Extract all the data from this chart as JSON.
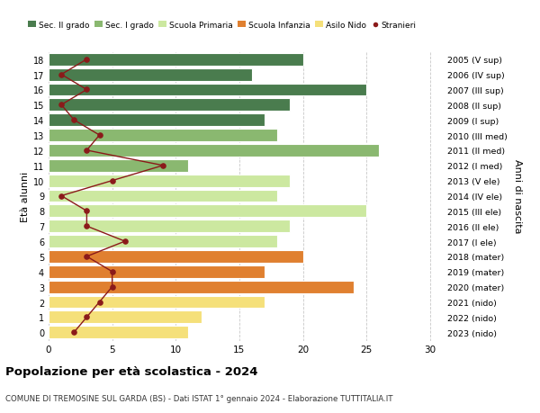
{
  "ages": [
    18,
    17,
    16,
    15,
    14,
    13,
    12,
    11,
    10,
    9,
    8,
    7,
    6,
    5,
    4,
    3,
    2,
    1,
    0
  ],
  "years": [
    "2005 (V sup)",
    "2006 (IV sup)",
    "2007 (III sup)",
    "2008 (II sup)",
    "2009 (I sup)",
    "2010 (III med)",
    "2011 (II med)",
    "2012 (I med)",
    "2013 (V ele)",
    "2014 (IV ele)",
    "2015 (III ele)",
    "2016 (II ele)",
    "2017 (I ele)",
    "2018 (mater)",
    "2019 (mater)",
    "2020 (mater)",
    "2021 (nido)",
    "2022 (nido)",
    "2023 (nido)"
  ],
  "bar_values": [
    20,
    16,
    25,
    19,
    17,
    18,
    26,
    11,
    19,
    18,
    25,
    19,
    18,
    20,
    17,
    24,
    17,
    12,
    11
  ],
  "bar_colors": [
    "#4a7c4e",
    "#4a7c4e",
    "#4a7c4e",
    "#4a7c4e",
    "#4a7c4e",
    "#8ab870",
    "#8ab870",
    "#8ab870",
    "#cce8a0",
    "#cce8a0",
    "#cce8a0",
    "#cce8a0",
    "#cce8a0",
    "#e08030",
    "#e08030",
    "#e08030",
    "#f5e07a",
    "#f5e07a",
    "#f5e07a"
  ],
  "stranieri_by_age": {
    "18": 3,
    "17": 1,
    "16": 3,
    "15": 1,
    "14": 2,
    "13": 4,
    "12": 3,
    "11": 9,
    "10": 5,
    "9": 1,
    "8": 3,
    "7": 3,
    "6": 6,
    "5": 3,
    "4": 5,
    "3": 5,
    "2": 4,
    "1": 3,
    "0": 2
  },
  "stranieri_color": "#8b1a1a",
  "legend_labels": [
    "Sec. II grado",
    "Sec. I grado",
    "Scuola Primaria",
    "Scuola Infanzia",
    "Asilo Nido",
    "Stranieri"
  ],
  "legend_colors": [
    "#4a7c4e",
    "#8ab870",
    "#cce8a0",
    "#e08030",
    "#f5e07a",
    "#8b1a1a"
  ],
  "ylabel_left": "Età alunni",
  "ylabel_right": "Anni di nascita",
  "title": "Popolazione per età scolastica - 2024",
  "subtitle": "COMUNE DI TREMOSINE SUL GARDA (BS) - Dati ISTAT 1° gennaio 2024 - Elaborazione TUTTITALIA.IT",
  "xlim": [
    0,
    31
  ],
  "xticks": [
    0,
    5,
    10,
    15,
    20,
    25,
    30
  ],
  "background_color": "#ffffff",
  "grid_color": "#c8c8c8"
}
